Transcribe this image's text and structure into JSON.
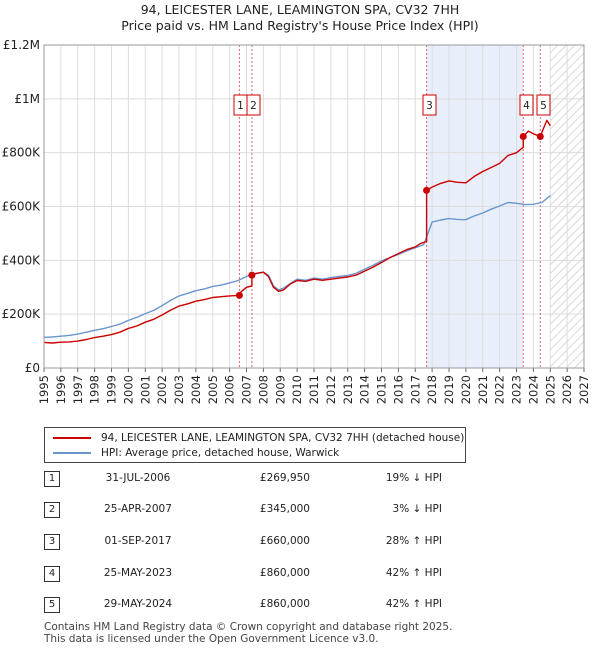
{
  "title": {
    "line1": "94, LEICESTER LANE, LEAMINGTON SPA, CV32 7HH",
    "line2": "Price paid vs. HM Land Registry's House Price Index (HPI)"
  },
  "colors": {
    "price_line": "#cc0000",
    "hpi_line": "#6a96cc",
    "shade": "#e8eefa",
    "marker_line": "#e06666",
    "grid": "#dddddd"
  },
  "chart_data": {
    "type": "line",
    "xlim": [
      1995,
      2027
    ],
    "ylim": [
      0,
      1200000
    ],
    "x_ticks": [
      "1995",
      "1996",
      "1997",
      "1998",
      "1999",
      "2000",
      "2001",
      "2002",
      "2003",
      "2004",
      "2005",
      "2006",
      "2007",
      "2008",
      "2009",
      "2010",
      "2011",
      "2012",
      "2013",
      "2014",
      "2015",
      "2016",
      "2017",
      "2018",
      "2019",
      "2020",
      "2021",
      "2022",
      "2023",
      "2024",
      "2025",
      "2026",
      "2027"
    ],
    "y_ticks": [
      {
        "value": 0,
        "label": "£0"
      },
      {
        "value": 200000,
        "label": "£200K"
      },
      {
        "value": 400000,
        "label": "£400K"
      },
      {
        "value": 600000,
        "label": "£600K"
      },
      {
        "value": 800000,
        "label": "£800K"
      },
      {
        "value": 1000000,
        "label": "£1M"
      },
      {
        "value": 1200000,
        "label": "£1.2M"
      }
    ],
    "grid": true,
    "forecast_start": 2025.0,
    "shaded_periods": [
      [
        2017.67,
        2023.4
      ]
    ],
    "series": [
      {
        "name": "94, LEICESTER LANE, LEAMINGTON SPA, CV32 7HH (detached house)",
        "x": [
          1995.0,
          1995.5,
          1996.0,
          1996.5,
          1997.0,
          1997.5,
          1998.0,
          1998.5,
          1999.0,
          1999.5,
          2000.0,
          2000.5,
          2001.0,
          2001.5,
          2002.0,
          2002.5,
          2003.0,
          2003.5,
          2004.0,
          2004.5,
          2005.0,
          2005.5,
          2006.0,
          2006.58,
          2006.58,
          2007.0,
          2007.32,
          2007.32,
          2007.6,
          2008.0,
          2008.3,
          2008.6,
          2008.9,
          2009.2,
          2009.6,
          2010.0,
          2010.5,
          2011.0,
          2011.5,
          2012.0,
          2012.5,
          2013.0,
          2013.5,
          2014.0,
          2014.5,
          2015.0,
          2015.5,
          2016.0,
          2016.5,
          2017.0,
          2017.3,
          2017.67,
          2017.67,
          2018.0,
          2018.5,
          2019.0,
          2019.5,
          2020.0,
          2020.5,
          2021.0,
          2021.5,
          2022.0,
          2022.5,
          2023.0,
          2023.3,
          2023.4,
          2023.4,
          2023.7,
          2024.0,
          2024.41,
          2024.41,
          2024.6,
          2024.8,
          2025.0
        ],
        "values": [
          95000,
          93000,
          96000,
          97000,
          100000,
          106000,
          113000,
          118000,
          124000,
          133000,
          147000,
          156000,
          170000,
          181000,
          197000,
          215000,
          230000,
          238000,
          248000,
          254000,
          262000,
          265000,
          268000,
          269950,
          278000,
          300000,
          305000,
          345000,
          352000,
          356000,
          340000,
          300000,
          285000,
          290000,
          312000,
          325000,
          322000,
          330000,
          326000,
          330000,
          334000,
          338000,
          345000,
          360000,
          375000,
          392000,
          410000,
          425000,
          440000,
          450000,
          462000,
          470000,
          660000,
          672000,
          686000,
          695000,
          690000,
          688000,
          712000,
          730000,
          745000,
          760000,
          790000,
          800000,
          815000,
          820000,
          860000,
          880000,
          870000,
          860000,
          860000,
          890000,
          920000,
          900000
        ]
      },
      {
        "name": "HPI: Average price, detached house, Warwick",
        "x": [
          1995.0,
          1995.5,
          1996.0,
          1996.5,
          1997.0,
          1997.5,
          1998.0,
          1998.5,
          1999.0,
          1999.5,
          2000.0,
          2000.5,
          2001.0,
          2001.5,
          2002.0,
          2002.5,
          2003.0,
          2003.5,
          2004.0,
          2004.5,
          2005.0,
          2005.5,
          2006.0,
          2006.5,
          2007.0,
          2007.5,
          2008.0,
          2008.3,
          2008.6,
          2008.9,
          2009.2,
          2009.6,
          2010.0,
          2010.5,
          2011.0,
          2011.5,
          2012.0,
          2012.5,
          2013.0,
          2013.5,
          2014.0,
          2014.5,
          2015.0,
          2015.5,
          2016.0,
          2016.5,
          2017.0,
          2017.5,
          2018.0,
          2018.5,
          2019.0,
          2019.5,
          2020.0,
          2020.5,
          2021.0,
          2021.5,
          2022.0,
          2022.5,
          2023.0,
          2023.5,
          2024.0,
          2024.5,
          2025.0
        ],
        "values": [
          114000,
          115000,
          118000,
          121000,
          126000,
          133000,
          140000,
          146000,
          154000,
          163000,
          177000,
          188000,
          202000,
          214000,
          232000,
          251000,
          268000,
          277000,
          287000,
          294000,
          303000,
          308000,
          316000,
          325000,
          340000,
          350000,
          356000,
          345000,
          305000,
          290000,
          297000,
          314000,
          330000,
          326000,
          334000,
          330000,
          336000,
          340000,
          344000,
          352000,
          367000,
          382000,
          398000,
          410000,
          422000,
          435000,
          447000,
          458000,
          542000,
          550000,
          555000,
          552000,
          551000,
          565000,
          576000,
          590000,
          602000,
          615000,
          612000,
          607000,
          608000,
          615000,
          640000
        ]
      }
    ],
    "sale_points": [
      {
        "label": "1",
        "x": 2006.58,
        "y": 269950
      },
      {
        "label": "2",
        "x": 2007.32,
        "y": 345000
      },
      {
        "label": "3",
        "x": 2017.67,
        "y": 660000
      },
      {
        "label": "4",
        "x": 2023.4,
        "y": 860000
      },
      {
        "label": "5",
        "x": 2024.41,
        "y": 860000
      }
    ]
  },
  "legend": {
    "items": [
      {
        "label": "94, LEICESTER LANE, LEAMINGTON SPA, CV32 7HH (detached house)"
      },
      {
        "label": "HPI: Average price, detached house, Warwick"
      }
    ]
  },
  "sales": [
    {
      "num": "1",
      "date": "31-JUL-2006",
      "price": "£269,950",
      "hpi": "19% ↓ HPI"
    },
    {
      "num": "2",
      "date": "25-APR-2007",
      "price": "£345,000",
      "hpi": "3% ↓ HPI"
    },
    {
      "num": "3",
      "date": "01-SEP-2017",
      "price": "£660,000",
      "hpi": "28% ↑ HPI"
    },
    {
      "num": "4",
      "date": "25-MAY-2023",
      "price": "£860,000",
      "hpi": "42% ↑ HPI"
    },
    {
      "num": "5",
      "date": "29-MAY-2024",
      "price": "£860,000",
      "hpi": "42% ↑ HPI"
    }
  ],
  "footer": {
    "line1": "Contains HM Land Registry data © Crown copyright and database right 2025.",
    "line2": "This data is licensed under the Open Government Licence v3.0."
  }
}
